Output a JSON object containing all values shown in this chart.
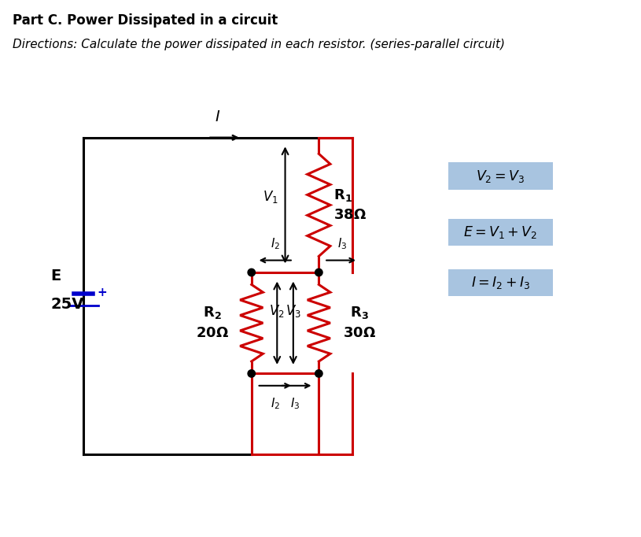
{
  "title": "Part C. Power Dissipated in a circuit",
  "directions": "Directions: Calculate the power dissipated in each resistor. (series-parallel circuit)",
  "bg_color": "#ffffff",
  "red_color": "#cc0000",
  "blue_color": "#0000cc",
  "box_bg": "#a8c4e0",
  "formulas": [
    "$V_2 = V_3$",
    "$E = V_1 + V_2$",
    "$I = I_2 + I_3$"
  ]
}
